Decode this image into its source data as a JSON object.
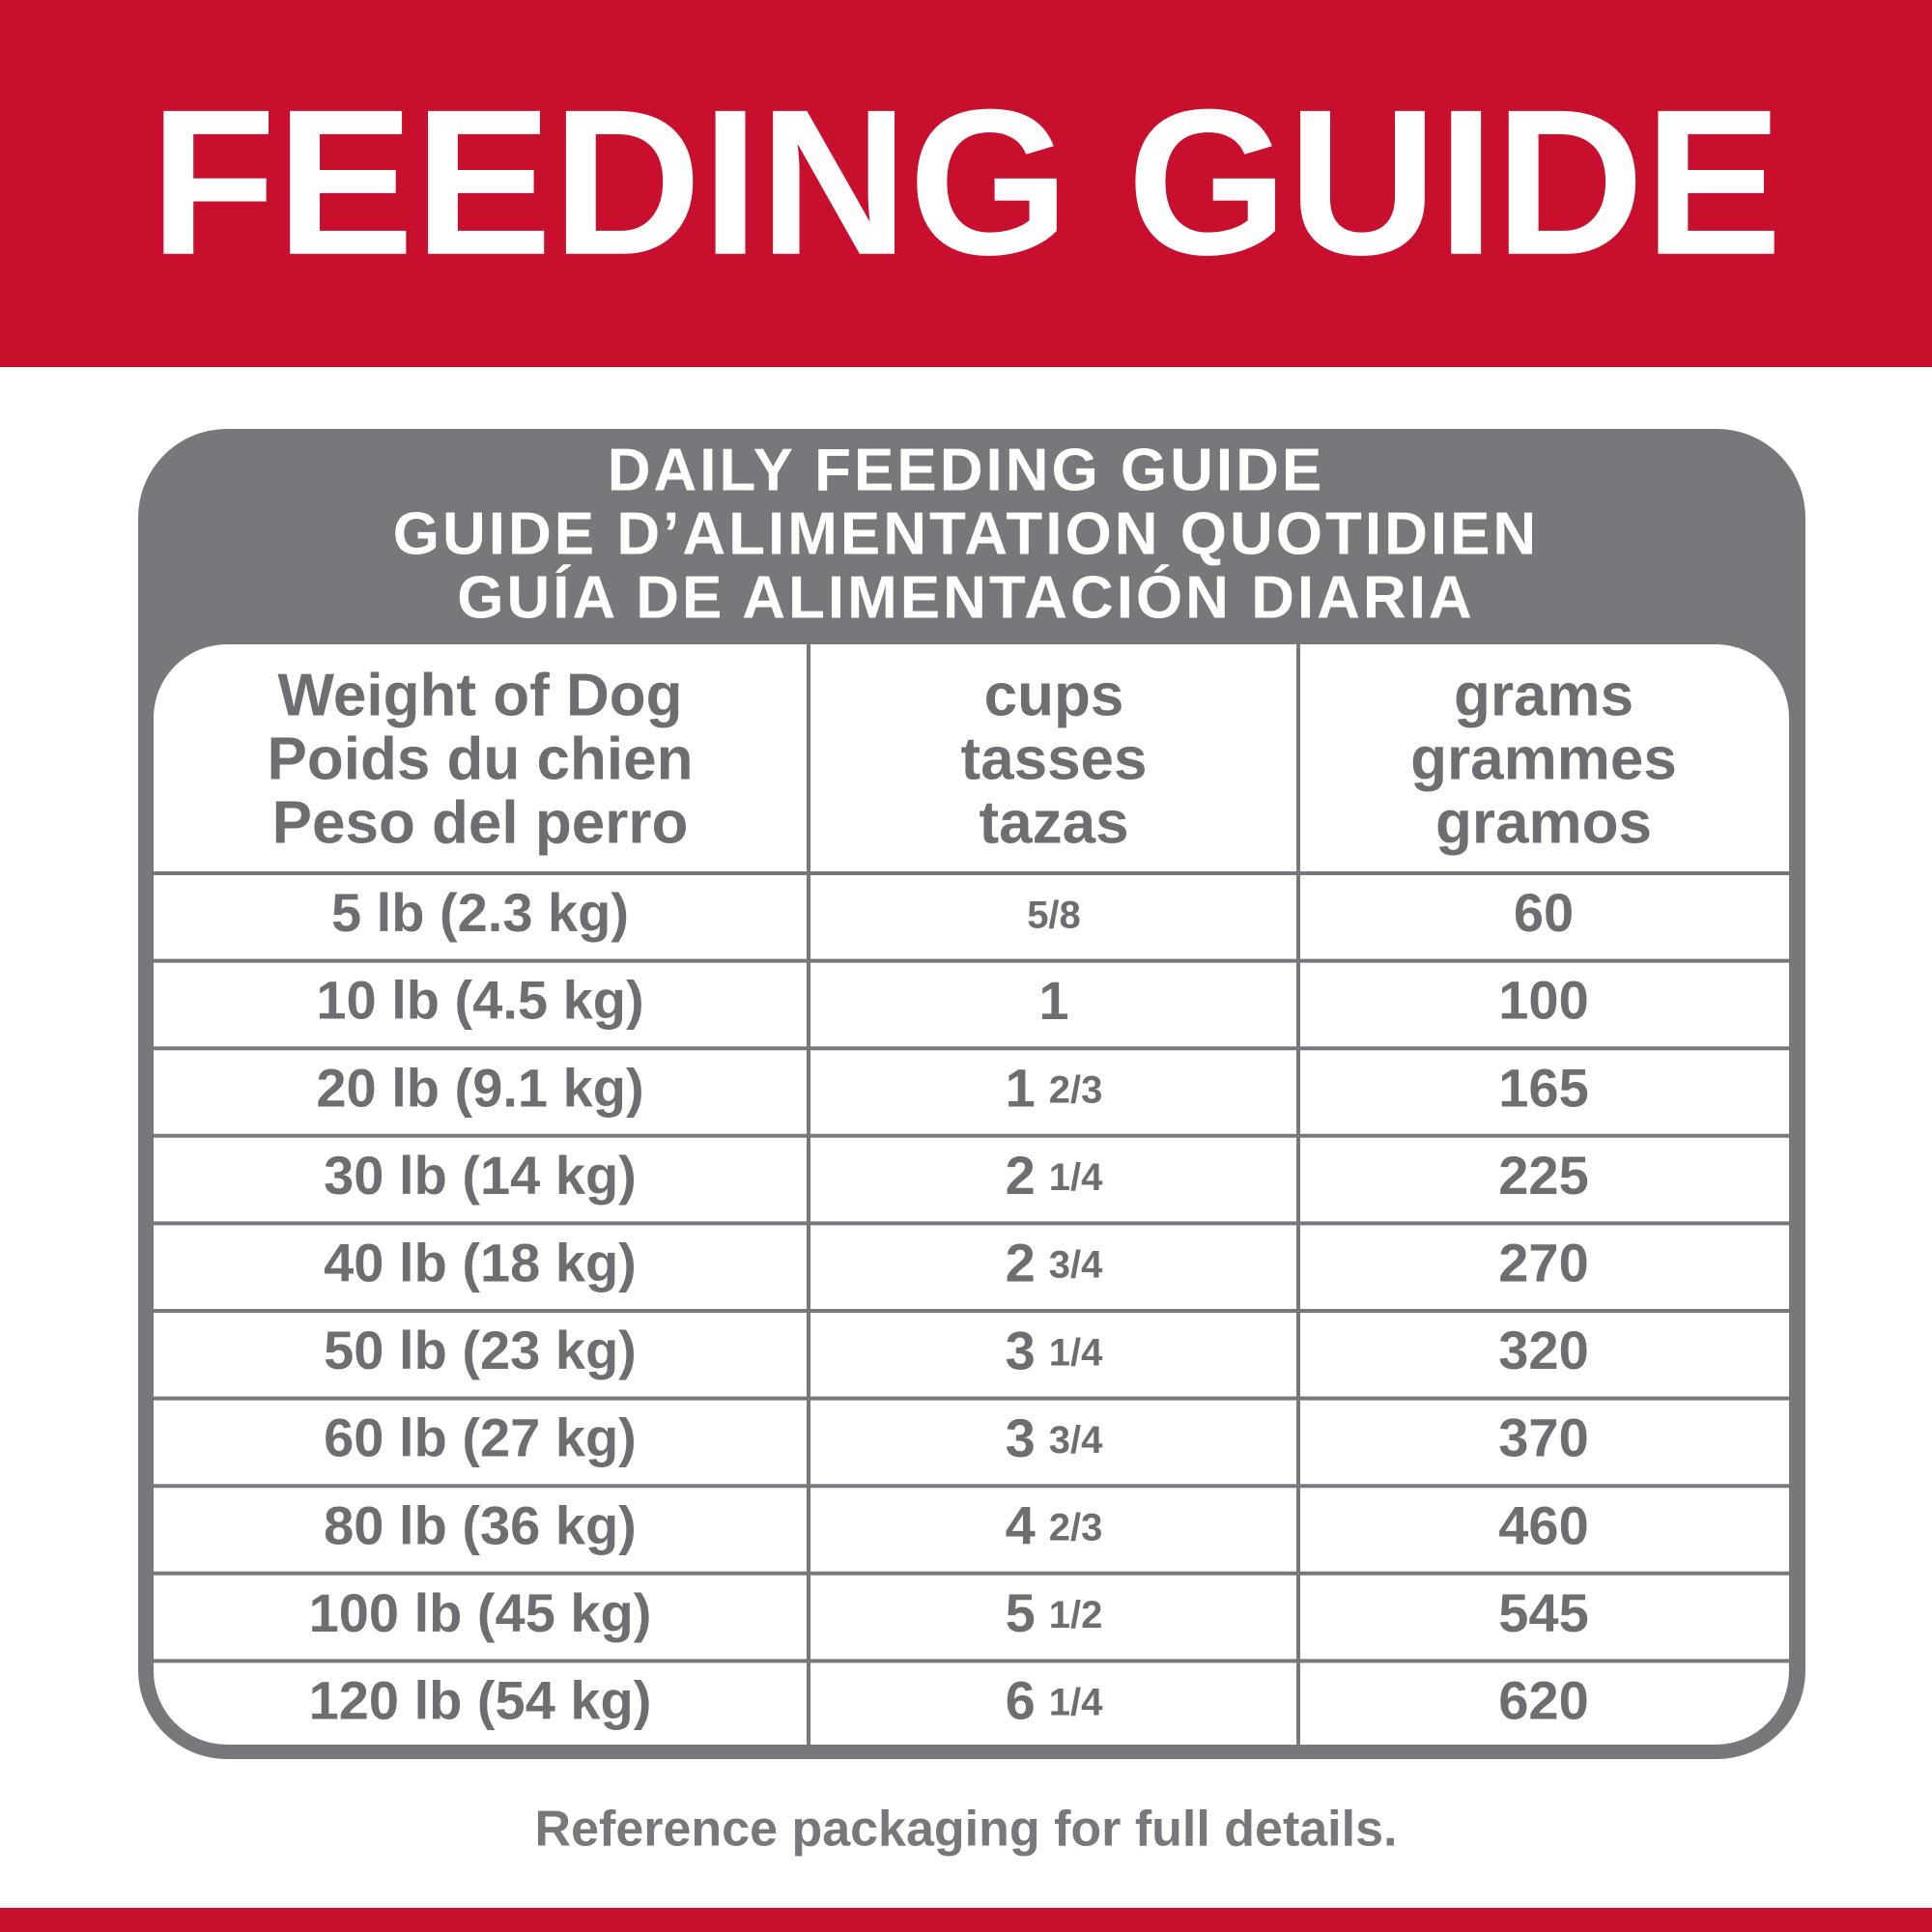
{
  "header": {
    "title": "FEEDING GUIDE"
  },
  "table": {
    "title": [
      "DAILY FEEDING GUIDE",
      "GUIDE D’ALIMENTATION QUOTIDIEN",
      "GUÍA DE ALIMENTACIÓN DIARIA"
    ],
    "columns": [
      [
        "Weight of Dog",
        "Poids du chien",
        "Peso del perro"
      ],
      [
        "cups",
        "tasses",
        "tazas"
      ],
      [
        "grams",
        "grammes",
        "gramos"
      ]
    ],
    "rows": [
      {
        "weight": "5 lb (2.3 kg)",
        "cups": {
          "fraction": "5/8"
        },
        "grams": "60"
      },
      {
        "weight": "10 lb (4.5 kg)",
        "cups": {
          "whole": "1"
        },
        "grams": "100"
      },
      {
        "weight": "20 lb (9.1 kg)",
        "cups": {
          "whole": "1",
          "fraction": "2/3"
        },
        "grams": "165"
      },
      {
        "weight": "30 lb (14 kg)",
        "cups": {
          "whole": "2",
          "fraction": "1/4"
        },
        "grams": "225"
      },
      {
        "weight": "40 lb (18 kg)",
        "cups": {
          "whole": "2",
          "fraction": "3/4"
        },
        "grams": "270"
      },
      {
        "weight": "50 lb (23 kg)",
        "cups": {
          "whole": "3",
          "fraction": "1/4"
        },
        "grams": "320"
      },
      {
        "weight": "60 lb (27 kg)",
        "cups": {
          "whole": "3",
          "fraction": "3/4"
        },
        "grams": "370"
      },
      {
        "weight": "80 lb (36 kg)",
        "cups": {
          "whole": "4",
          "fraction": "2/3"
        },
        "grams": "460"
      },
      {
        "weight": "100 lb (45 kg)",
        "cups": {
          "whole": "5",
          "fraction": "1/2"
        },
        "grams": "545"
      },
      {
        "weight": "120 lb (54 kg)",
        "cups": {
          "whole": "6",
          "fraction": "1/4"
        },
        "grams": "620"
      }
    ]
  },
  "footer": {
    "note": "Reference packaging for full details."
  }
}
